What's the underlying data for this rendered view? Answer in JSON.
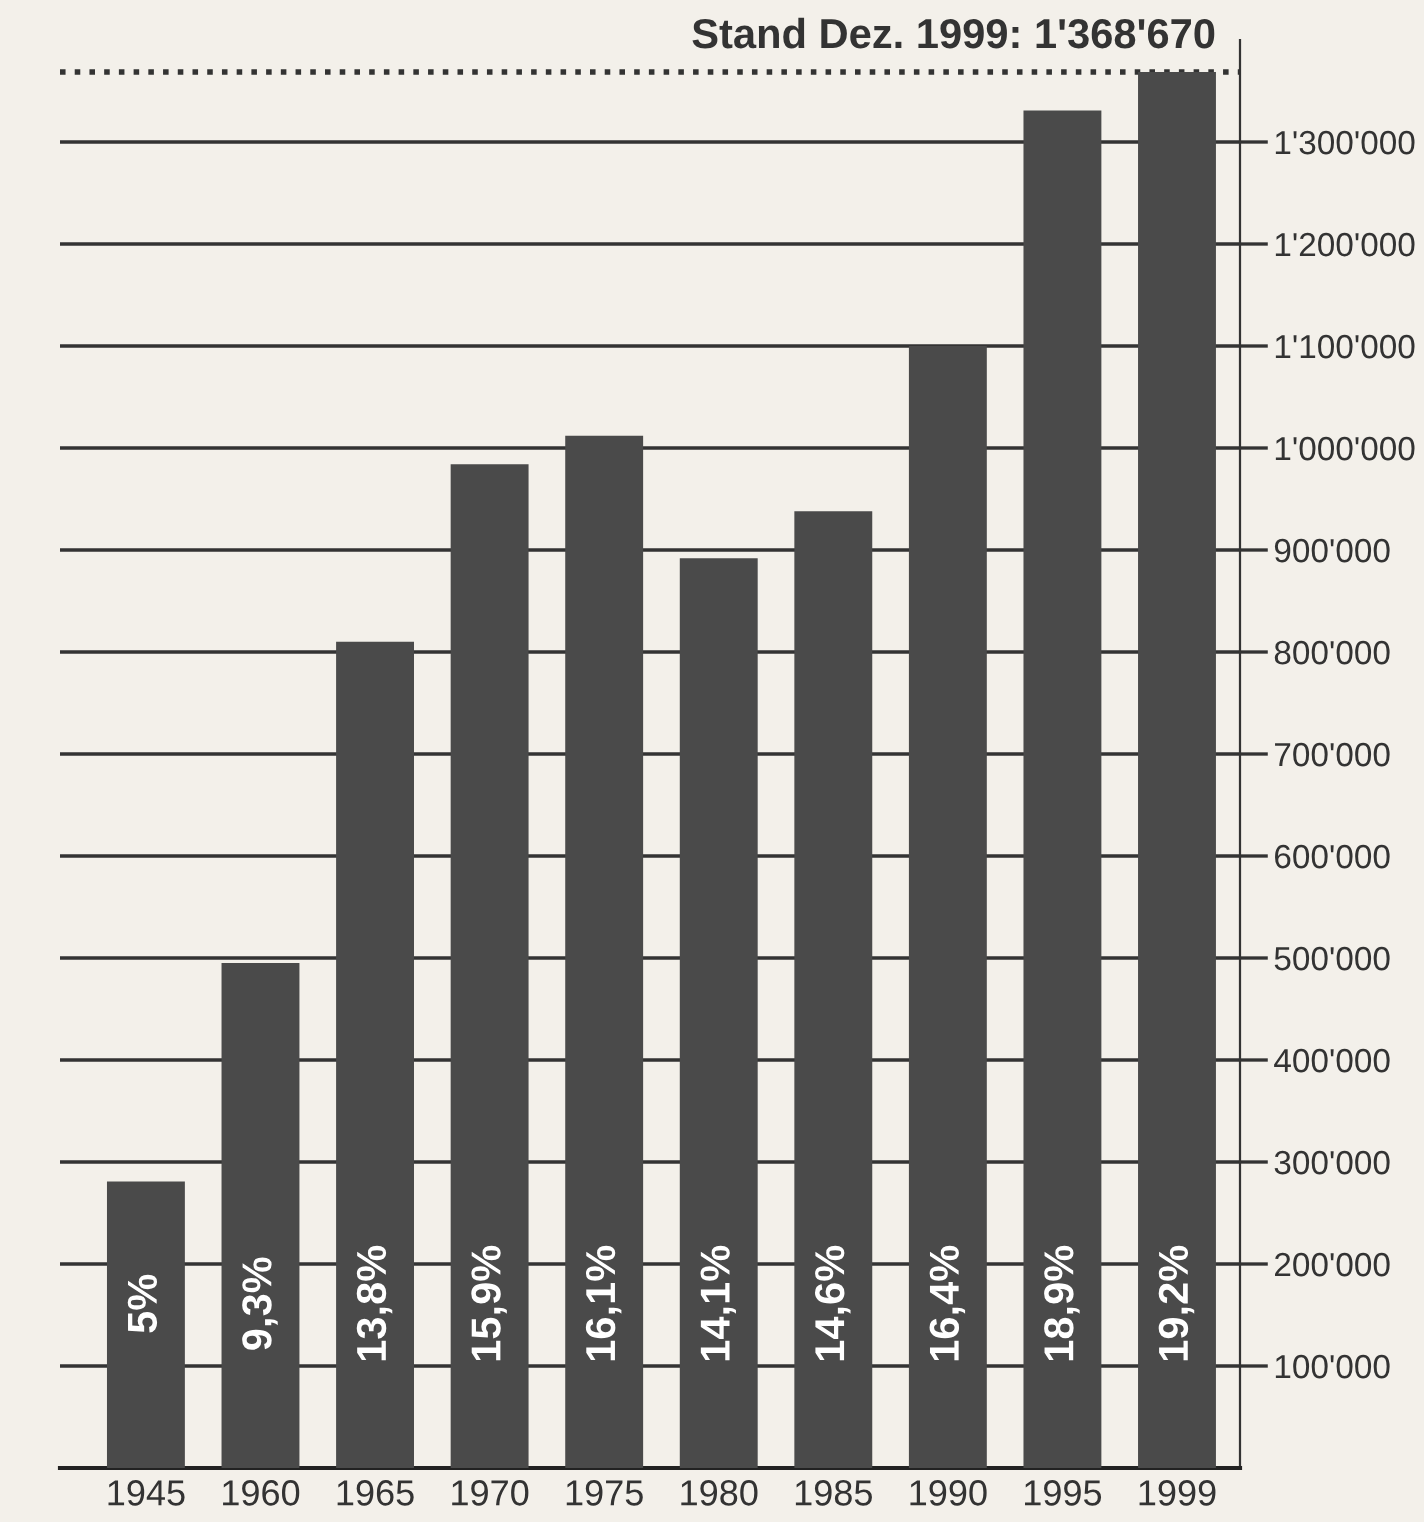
{
  "chart_data": {
    "type": "bar",
    "categories": [
      "1945",
      "1960",
      "1965",
      "1970",
      "1975",
      "1980",
      "1985",
      "1990",
      "1995",
      "1999"
    ],
    "values": [
      281000,
      495000,
      810000,
      984000,
      1012000,
      892000,
      938000,
      1100000,
      1331000,
      1368670
    ],
    "color": "#4a4a4a",
    "annotations": [
      "5%",
      "9,3%",
      "13,8%",
      "15,9%",
      "16,1%",
      "14,1%",
      "14,6%",
      "16,4%",
      "18,9%",
      "19,2%"
    ],
    "ylim": [
      0,
      1400000
    ],
    "yticks": [
      {
        "value": 100000,
        "label": "100'000"
      },
      {
        "value": 200000,
        "label": "200'000"
      },
      {
        "value": 300000,
        "label": "300'000"
      },
      {
        "value": 400000,
        "label": "400'000"
      },
      {
        "value": 500000,
        "label": "500'000"
      },
      {
        "value": 600000,
        "label": "600'000"
      },
      {
        "value": 700000,
        "label": "700'000"
      },
      {
        "value": 800000,
        "label": "800'000"
      },
      {
        "value": 900000,
        "label": "900'000"
      },
      {
        "value": 1000000,
        "label": "1'000'000"
      },
      {
        "value": 1100000,
        "label": "1'100'000"
      },
      {
        "value": 1200000,
        "label": "1'200'000"
      },
      {
        "value": 1300000,
        "label": "1'300'000"
      }
    ],
    "ref_lines": [
      {
        "axis": "y",
        "value": 1368670,
        "label": "Stand Dez. 1999: 1'368'670",
        "line_style": "dotted",
        "color": "#333333"
      }
    ],
    "grid": "y"
  }
}
